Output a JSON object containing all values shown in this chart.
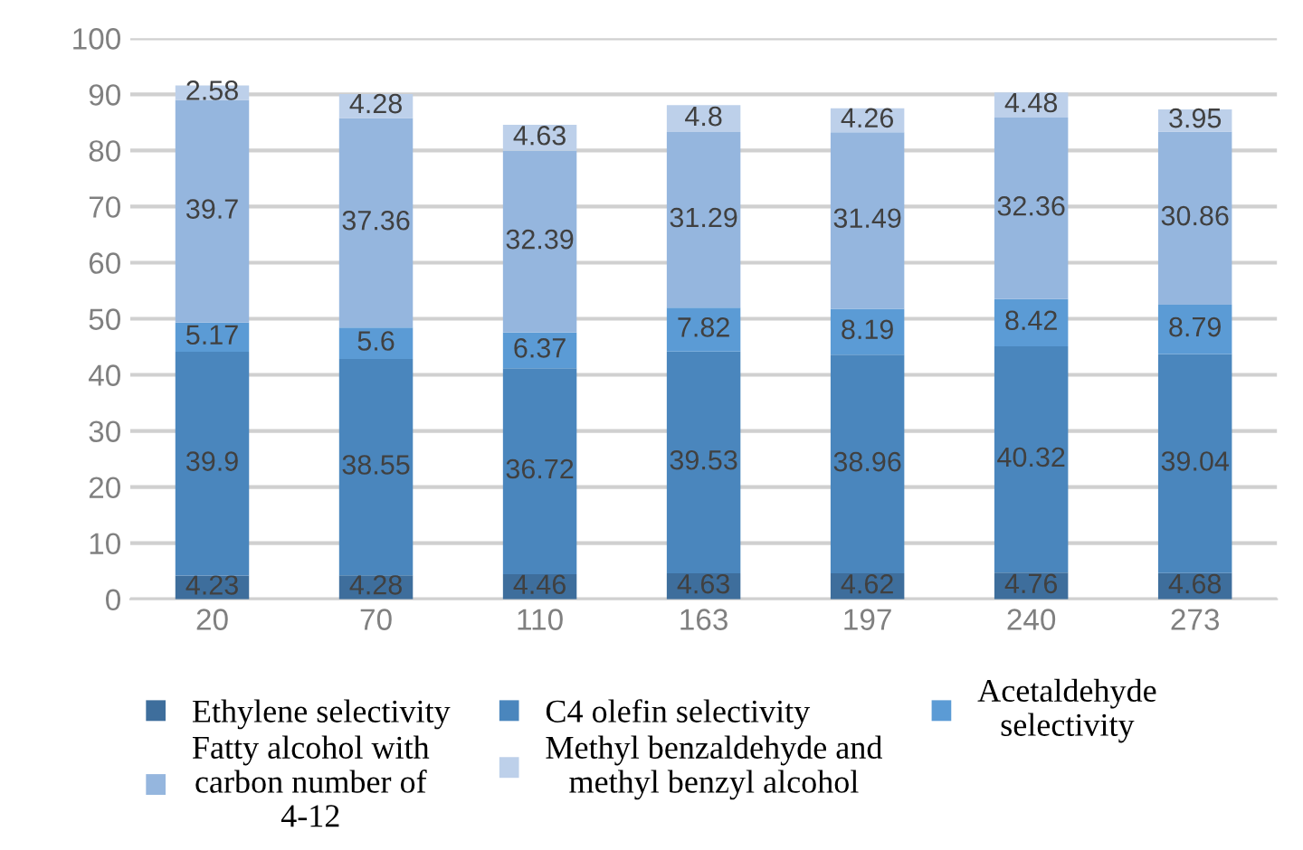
{
  "chart_data": {
    "type": "bar",
    "stacked": true,
    "categories": [
      "20",
      "70",
      "110",
      "163",
      "197",
      "240",
      "273"
    ],
    "series": [
      {
        "name": "Ethylene selectivity",
        "color": "#3e6e9c",
        "values": [
          4.23,
          4.28,
          4.46,
          4.63,
          4.62,
          4.76,
          4.68
        ]
      },
      {
        "name": "C4 olefin selectivity",
        "color": "#4a86bd",
        "values": [
          39.9,
          38.55,
          36.72,
          39.53,
          38.96,
          40.32,
          39.04
        ]
      },
      {
        "name": "Acetaldehyde\nselectivity",
        "color": "#5b9bd5",
        "values": [
          5.17,
          5.6,
          6.37,
          7.82,
          8.19,
          8.42,
          8.79
        ]
      },
      {
        "name": "Fatty alcohol with\ncarbon number of\n4-12",
        "color": "#95b6de",
        "values": [
          39.7,
          37.36,
          32.39,
          31.29,
          31.49,
          32.36,
          30.86
        ]
      },
      {
        "name": "Methyl benzaldehyde and\nmethyl benzyl alcohol",
        "color": "#bdd0ea",
        "values": [
          2.58,
          4.28,
          4.63,
          4.8,
          4.26,
          4.48,
          3.95
        ]
      }
    ],
    "ylim": [
      0,
      100
    ],
    "yticks": [
      0,
      10,
      20,
      30,
      40,
      50,
      60,
      70,
      80,
      90,
      100
    ],
    "grid": "y",
    "data_labels": true,
    "legend": "bottom"
  }
}
